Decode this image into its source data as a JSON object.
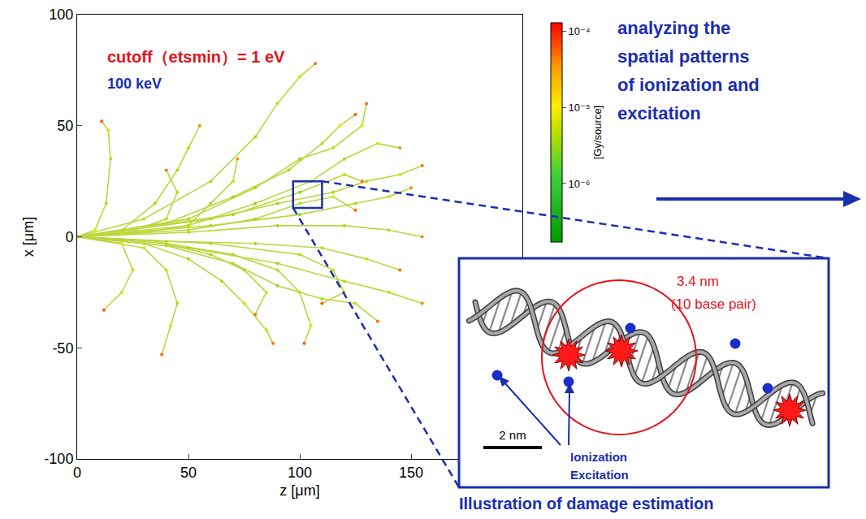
{
  "chart_data": {
    "type": "scatter",
    "x_label": "z [μm]",
    "y_label": "x [μm]",
    "xlim": [
      0,
      200
    ],
    "ylim": [
      -100,
      100
    ],
    "xticks": [
      0,
      50,
      100,
      150
    ],
    "yticks": [
      -100,
      -50,
      0,
      50,
      100
    ],
    "marker": "circle",
    "line_style": "solid",
    "annotations": [
      {
        "text": "cutoff（etsmin）= 1 eV",
        "color": "#e8111a"
      },
      {
        "text": "100 keV",
        "color": "#1a2eb0"
      }
    ],
    "colorbar": {
      "title": "[Gy/source]",
      "range": [
        1.7e-07,
        0.00013
      ],
      "ticks": [
        {
          "value": 1e-06,
          "label": "10⁻⁶"
        },
        {
          "value": 1e-05,
          "label": "10⁻⁵"
        },
        {
          "value": 0.0001,
          "label": "10⁻⁴"
        }
      ]
    },
    "zoom_box": {
      "xlim": [
        97,
        110
      ],
      "ylim": [
        13,
        25
      ]
    },
    "series": [
      {
        "x": [
          0,
          30,
          60,
          80,
          90,
          100,
          107
        ],
        "y": [
          0,
          8,
          25,
          45,
          60,
          72,
          78
        ],
        "dose": [
          2e-05,
          5e-06,
          4e-06,
          4e-06,
          5e-06,
          6e-06,
          5e-05
        ]
      },
      {
        "x": [
          0,
          8,
          13,
          15,
          14,
          11
        ],
        "y": [
          0,
          3,
          15,
          35,
          48,
          52
        ],
        "dose": [
          2e-05,
          8e-06,
          4e-06,
          4e-06,
          6e-06,
          6e-05
        ]
      },
      {
        "x": [
          0,
          20,
          35,
          45,
          50,
          55
        ],
        "y": [
          0,
          3,
          15,
          30,
          40,
          50
        ],
        "dose": [
          2e-05,
          6e-06,
          4e-06,
          4e-06,
          5e-06,
          4e-05
        ]
      },
      {
        "x": [
          0,
          40,
          70,
          95,
          110,
          118,
          125
        ],
        "y": [
          0,
          6,
          18,
          30,
          42,
          50,
          55
        ],
        "dose": [
          2e-05,
          5e-06,
          4e-06,
          4e-06,
          5e-06,
          8e-06,
          6e-05
        ]
      },
      {
        "x": [
          0,
          50,
          80,
          100,
          115,
          128,
          130
        ],
        "y": [
          0,
          8,
          22,
          35,
          40,
          50,
          60
        ],
        "dose": [
          2e-05,
          4e-06,
          4e-06,
          3e-06,
          5e-06,
          7e-06,
          5e-05
        ]
      },
      {
        "x": [
          0,
          50,
          80,
          105,
          120,
          135,
          145
        ],
        "y": [
          0,
          5,
          15,
          25,
          35,
          42,
          40
        ],
        "dose": [
          2e-05,
          4e-06,
          3e-06,
          4e-06,
          4e-06,
          6e-06,
          4e-05
        ]
      },
      {
        "x": [
          0,
          60,
          90,
          115,
          130,
          145,
          155
        ],
        "y": [
          0,
          8,
          15,
          20,
          25,
          28,
          32
        ],
        "dose": [
          2e-05,
          4e-06,
          3e-06,
          4e-06,
          4e-06,
          6e-06,
          5e-05
        ]
      },
      {
        "x": [
          0,
          60,
          100,
          125,
          140,
          150
        ],
        "y": [
          0,
          5,
          10,
          15,
          18,
          22
        ],
        "dose": [
          2e-05,
          4e-06,
          3e-06,
          4e-06,
          6e-06,
          4e-05
        ]
      },
      {
        "x": [
          0,
          50,
          80,
          100,
          115,
          125
        ],
        "y": [
          0,
          3,
          8,
          15,
          18,
          12
        ],
        "dose": [
          2e-05,
          5e-06,
          4e-06,
          4e-06,
          7e-06,
          6e-05
        ]
      },
      {
        "x": [
          0,
          50,
          90,
          120,
          140,
          155
        ],
        "y": [
          0,
          2,
          5,
          5,
          3,
          0
        ],
        "dose": [
          2e-05,
          5e-06,
          3e-06,
          4e-06,
          5e-06,
          4e-05
        ]
      },
      {
        "x": [
          0,
          40,
          80,
          110,
          130,
          145
        ],
        "y": [
          0,
          -2,
          -3,
          -5,
          -10,
          -15
        ],
        "dose": [
          2e-05,
          5e-06,
          4e-06,
          4e-06,
          6e-06,
          5e-05
        ]
      },
      {
        "x": [
          0,
          40,
          70,
          90,
          100,
          105,
          102
        ],
        "y": [
          0,
          -3,
          -8,
          -15,
          -25,
          -40,
          -48
        ],
        "dose": [
          2e-05,
          5e-06,
          4e-06,
          4e-06,
          5e-06,
          7e-06,
          6e-05
        ]
      },
      {
        "x": [
          0,
          30,
          50,
          65,
          75,
          85,
          88
        ],
        "y": [
          0,
          -3,
          -10,
          -20,
          -30,
          -42,
          -48
        ],
        "dose": [
          2e-05,
          6e-06,
          4e-06,
          4e-06,
          5e-06,
          6e-06,
          5e-05
        ]
      },
      {
        "x": [
          0,
          30,
          40,
          45,
          42,
          38
        ],
        "y": [
          0,
          -5,
          -15,
          -30,
          -40,
          -53
        ],
        "dose": [
          2e-05,
          6e-06,
          5e-06,
          4e-06,
          6e-06,
          5e-05
        ]
      },
      {
        "x": [
          0,
          20,
          25,
          20,
          12
        ],
        "y": [
          0,
          -3,
          -15,
          -25,
          -33
        ],
        "dose": [
          2e-05,
          8e-06,
          5e-06,
          6e-06,
          6e-05
        ]
      },
      {
        "x": [
          0,
          40,
          70,
          90,
          110,
          125,
          135
        ],
        "y": [
          0,
          -4,
          -12,
          -22,
          -28,
          -30,
          -38
        ],
        "dose": [
          2e-05,
          5e-06,
          4e-06,
          3e-06,
          4e-06,
          6e-06,
          5e-05
        ]
      },
      {
        "x": [
          0,
          50,
          90,
          120,
          140,
          155
        ],
        "y": [
          0,
          -5,
          -12,
          -20,
          -25,
          -30
        ],
        "dose": [
          2e-05,
          4e-06,
          3e-06,
          4e-06,
          5e-06,
          4e-05
        ]
      },
      {
        "x": [
          0,
          35,
          60,
          75,
          85,
          80
        ],
        "y": [
          0,
          -2,
          -8,
          -15,
          -25,
          -35
        ],
        "dose": [
          2e-05,
          6e-06,
          4e-06,
          4e-06,
          6e-06,
          5e-05
        ]
      },
      {
        "x": [
          0,
          30,
          50,
          60,
          70,
          72
        ],
        "y": [
          0,
          2,
          5,
          15,
          25,
          35
        ],
        "dose": [
          2e-05,
          6e-06,
          5e-06,
          4e-06,
          6e-06,
          4e-05
        ]
      },
      {
        "x": [
          0,
          20,
          40,
          45,
          40
        ],
        "y": [
          0,
          1,
          8,
          20,
          30
        ],
        "dose": [
          2e-05,
          8e-06,
          5e-06,
          5e-06,
          5e-05
        ]
      },
      {
        "x": [
          0,
          70,
          100,
          120,
          128
        ],
        "y": [
          0,
          10,
          20,
          28,
          25
        ],
        "dose": [
          2e-05,
          4e-06,
          3e-06,
          5e-06,
          5e-05
        ]
      },
      {
        "x": [
          0,
          60,
          100,
          115,
          120,
          110
        ],
        "y": [
          0,
          -3,
          -8,
          -15,
          -25,
          -30
        ],
        "dose": [
          2e-05,
          4e-06,
          4e-06,
          5e-06,
          7e-06,
          6e-05
        ]
      }
    ]
  },
  "side_text": [
    "analyzing the",
    "spatial patterns",
    "of ionization and",
    "excitation"
  ],
  "inset": {
    "circle_label": "3.4 nm",
    "circle_sublabel": "(10 base pair)",
    "scale_bar": "2 nm",
    "labels": [
      "Ionization",
      "Excitation"
    ]
  },
  "caption": "Illustration of damage estimation"
}
